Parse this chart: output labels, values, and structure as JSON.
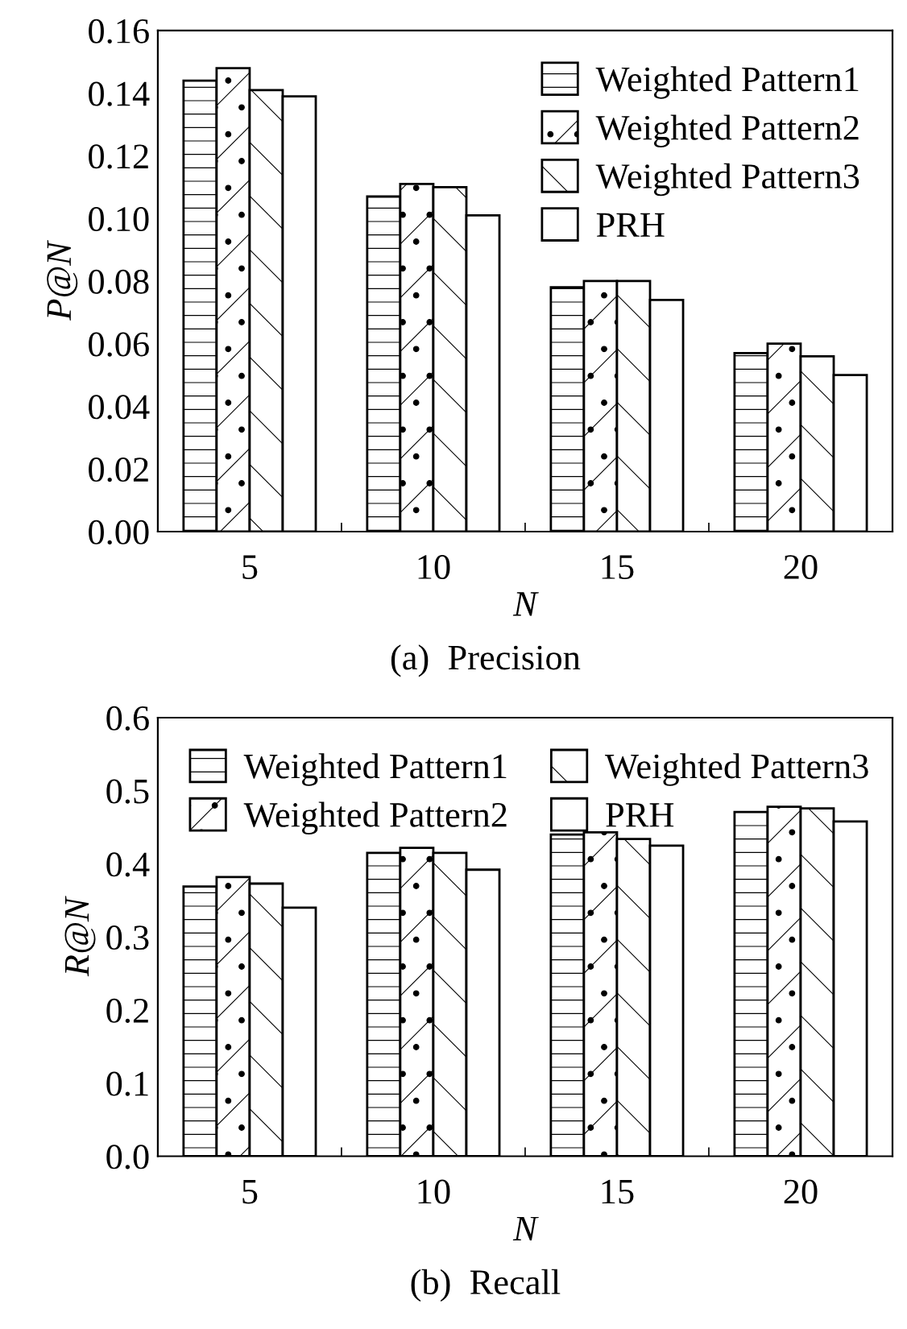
{
  "chart_data": [
    {
      "type": "bar",
      "title": "(a)  Precision",
      "xlabel": "N",
      "ylabel": "P@N",
      "categories": [
        "5",
        "10",
        "15",
        "20"
      ],
      "series": [
        {
          "name": "Weighted Pattern1",
          "color": "#ffffff",
          "values": [
            0.144,
            0.107,
            0.078,
            0.057
          ]
        },
        {
          "name": "Weighted Pattern2",
          "color": "#ffffff",
          "values": [
            0.148,
            0.111,
            0.08,
            0.06
          ]
        },
        {
          "name": "Weighted Pattern3",
          "color": "#ffffff",
          "values": [
            0.141,
            0.11,
            0.08,
            0.056
          ]
        },
        {
          "name": "PRH",
          "color": "#ffffff",
          "values": [
            0.139,
            0.101,
            0.074,
            0.05
          ]
        }
      ],
      "ylim": [
        0,
        0.16
      ],
      "yticks": [
        {
          "value": 0,
          "label": "0.00"
        },
        {
          "value": 0.02,
          "label": "0.02"
        },
        {
          "value": 0.04,
          "label": "0.04"
        },
        {
          "value": 0.06,
          "label": "0.06"
        },
        {
          "value": 0.08,
          "label": "0.08"
        },
        {
          "value": 0.1,
          "label": "0.10"
        },
        {
          "value": 0.12,
          "label": "0.12"
        },
        {
          "value": 0.14,
          "label": "0.14"
        },
        {
          "value": 0.16,
          "label": "0.16"
        }
      ],
      "legend": "top right",
      "grid": false
    },
    {
      "type": "bar",
      "title": "(b)  Recall",
      "xlabel": "N",
      "ylabel": "R@N",
      "categories": [
        "5",
        "10",
        "15",
        "20"
      ],
      "series": [
        {
          "name": "Weighted Pattern1",
          "color": "#ffffff",
          "values": [
            0.369,
            0.415,
            0.44,
            0.471
          ]
        },
        {
          "name": "Weighted Pattern2",
          "color": "#ffffff",
          "values": [
            0.382,
            0.422,
            0.443,
            0.478
          ]
        },
        {
          "name": "Weighted Pattern3",
          "color": "#ffffff",
          "values": [
            0.373,
            0.415,
            0.434,
            0.476
          ]
        },
        {
          "name": "PRH",
          "color": "#ffffff",
          "values": [
            0.34,
            0.392,
            0.425,
            0.458
          ]
        }
      ],
      "ylim": [
        0,
        0.6
      ],
      "yticks": [
        {
          "value": 0,
          "label": "0.0"
        },
        0.1,
        0.2,
        0.3,
        0.4,
        0.5,
        0.6
      ],
      "legend": "top left",
      "grid": false
    }
  ]
}
